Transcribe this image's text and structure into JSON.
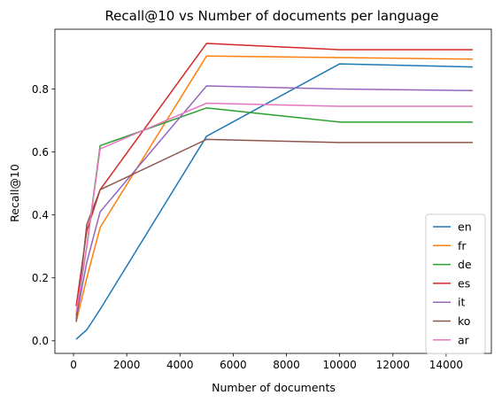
{
  "chart_data": {
    "type": "line",
    "title": "Recall@10 vs Number of documents per language",
    "xlabel": "Number of documents",
    "ylabel": "Recall@10",
    "xlim": [
      -700,
      15700
    ],
    "ylim": [
      -0.04,
      0.99
    ],
    "xticks": [
      0,
      2000,
      4000,
      6000,
      8000,
      10000,
      12000,
      14000
    ],
    "yticks": [
      0.0,
      0.2,
      0.4,
      0.6,
      0.8
    ],
    "xtick_labels": [
      "0",
      "2000",
      "4000",
      "6000",
      "8000",
      "10000",
      "12000",
      "14000"
    ],
    "ytick_labels": [
      "0.0",
      "0.2",
      "0.4",
      "0.6",
      "0.8"
    ],
    "grid": false,
    "legend_position": "lower-right",
    "series": [
      {
        "name": "en",
        "color": "#1f77b4",
        "x": [
          100,
          500,
          1000,
          5000,
          10000,
          15000
        ],
        "y": [
          0.005,
          0.035,
          0.1,
          0.65,
          0.88,
          0.87
        ]
      },
      {
        "name": "fr",
        "color": "#ff7f0e",
        "x": [
          100,
          500,
          1000,
          5000,
          10000,
          15000
        ],
        "y": [
          0.06,
          0.2,
          0.36,
          0.905,
          0.9,
          0.895
        ]
      },
      {
        "name": "de",
        "color": "#2ca02c",
        "x": [
          100,
          500,
          1000,
          5000,
          10000,
          15000
        ],
        "y": [
          0.08,
          0.3,
          0.62,
          0.74,
          0.695,
          0.695
        ]
      },
      {
        "name": "es",
        "color": "#d62728",
        "x": [
          100,
          500,
          1000,
          5000,
          10000,
          15000
        ],
        "y": [
          0.11,
          0.35,
          0.48,
          0.945,
          0.925,
          0.925
        ]
      },
      {
        "name": "it",
        "color": "#9467bd",
        "x": [
          100,
          500,
          1000,
          5000,
          10000,
          15000
        ],
        "y": [
          0.07,
          0.25,
          0.41,
          0.81,
          0.8,
          0.795
        ]
      },
      {
        "name": "ko",
        "color": "#8c564b",
        "x": [
          100,
          500,
          1000,
          5000,
          10000,
          15000
        ],
        "y": [
          0.06,
          0.37,
          0.48,
          0.64,
          0.63,
          0.63
        ]
      },
      {
        "name": "ar",
        "color": "#e377c2",
        "x": [
          100,
          500,
          1000,
          5000,
          10000,
          15000
        ],
        "y": [
          0.09,
          0.3,
          0.61,
          0.755,
          0.745,
          0.745
        ]
      }
    ]
  }
}
